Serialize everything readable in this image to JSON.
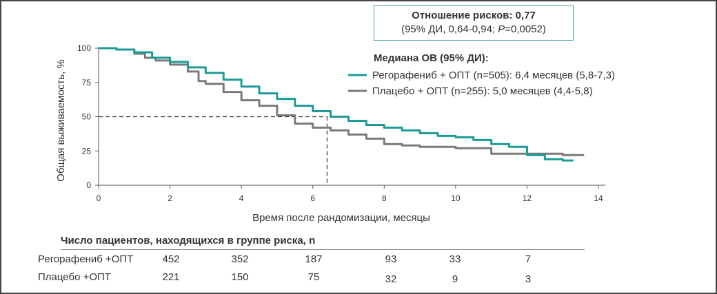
{
  "hr_box": {
    "title": "Отношение рисков: 0,77",
    "subtitle_pre": "(95% ДИ, 0,64-0,94; ",
    "subtitle_p": "P",
    "subtitle_post": "=0,0052)"
  },
  "legend": {
    "title": "Медиана ОВ (95% ДИ):",
    "entries": [
      {
        "label": "Регорафениб  + ОПТ (n=505): 6,4 месяцев (5,8-7,3)",
        "color": "#1a9b96"
      },
      {
        "label": "Плацебо + ОПТ (n=255): 5,0 месяцев (4,4-5,8)",
        "color": "#7a7a7a"
      }
    ]
  },
  "chart_data": {
    "type": "line",
    "xlabel": "Время после рандомизации, месяцы",
    "ylabel": "Общая выживаемость, %",
    "xlim": [
      0,
      14
    ],
    "ylim": [
      0,
      100
    ],
    "xticks": [
      0,
      2,
      4,
      6,
      8,
      10,
      12,
      14
    ],
    "yticks": [
      0,
      25,
      50,
      75,
      100
    ],
    "median_line": {
      "y": 50,
      "x": 6.4
    },
    "series": [
      {
        "name": "Регорафениб + ОПТ",
        "color": "#1a9b96",
        "x": [
          0,
          0.5,
          1.0,
          1.5,
          2.0,
          2.5,
          3.0,
          3.5,
          4.0,
          4.5,
          5.0,
          5.5,
          6.0,
          6.5,
          7.0,
          7.5,
          8.0,
          8.5,
          9.0,
          9.5,
          10.0,
          10.5,
          11.0,
          11.5,
          12.0,
          12.5,
          13.0,
          13.3
        ],
        "y": [
          100,
          99,
          97,
          93,
          90,
          86,
          82,
          77,
          72,
          67,
          63,
          58,
          54,
          50,
          47,
          44,
          42,
          40,
          38,
          36,
          35,
          33,
          30,
          28,
          22,
          19,
          18,
          18
        ]
      },
      {
        "name": "Плацебо + ОПТ",
        "color": "#7a7a7a",
        "x": [
          0,
          0.5,
          1.0,
          1.3,
          1.6,
          2.0,
          2.5,
          2.8,
          3.0,
          3.5,
          4.0,
          4.5,
          5.0,
          5.5,
          6.0,
          6.5,
          7.0,
          7.5,
          8.0,
          8.5,
          9.0,
          9.5,
          10.0,
          10.5,
          11.0,
          12.0,
          13.0,
          13.6
        ],
        "y": [
          100,
          99,
          96,
          93,
          91,
          88,
          83,
          76,
          74,
          68,
          62,
          58,
          51,
          45,
          42,
          40,
          37,
          34,
          30,
          29,
          28,
          28,
          27,
          27,
          23,
          23,
          22,
          22
        ]
      }
    ]
  },
  "risk_table": {
    "title": "Число пациентов, находящихся в группе риска, n",
    "rows": [
      {
        "label": "Регорафениб  +ОПТ",
        "values": [
          "452",
          "352",
          "187",
          "93",
          "33",
          "7"
        ]
      },
      {
        "label": "Плацебо  +ОПТ",
        "values": [
          "221",
          "150",
          "75",
          "32",
          "9",
          "3"
        ]
      }
    ]
  }
}
